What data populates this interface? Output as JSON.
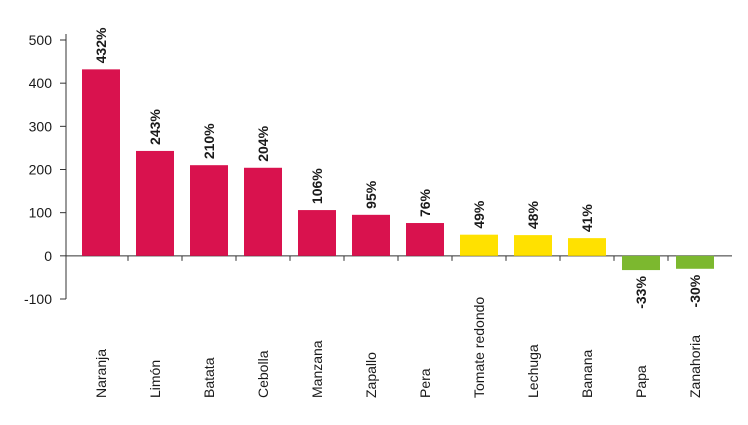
{
  "chart_data": {
    "type": "bar",
    "categories": [
      "Naranja",
      "Limón",
      "Batata",
      "Cebolla",
      "Manzana",
      "Zapallo",
      "Pera",
      "Tomate redondo",
      "Lechuga",
      "Banana",
      "Papa",
      "Zanahoria"
    ],
    "values": [
      432,
      243,
      210,
      204,
      106,
      95,
      76,
      49,
      48,
      41,
      -33,
      -30
    ],
    "data_labels": [
      "432%",
      "243%",
      "210%",
      "204%",
      "106%",
      "95%",
      "76%",
      "49%",
      "48%",
      "41%",
      "-33%",
      "-30%"
    ],
    "colors": [
      "#d9124e",
      "#d9124e",
      "#d9124e",
      "#d9124e",
      "#d9124e",
      "#d9124e",
      "#d9124e",
      "#ffe100",
      "#ffe100",
      "#ffe100",
      "#7cb82f",
      "#7cb82f"
    ],
    "yticks": [
      -100,
      0,
      100,
      200,
      300,
      400,
      500
    ],
    "ylim": [
      -100,
      500
    ],
    "grid": false,
    "title": "",
    "xlabel": "",
    "ylabel": ""
  }
}
